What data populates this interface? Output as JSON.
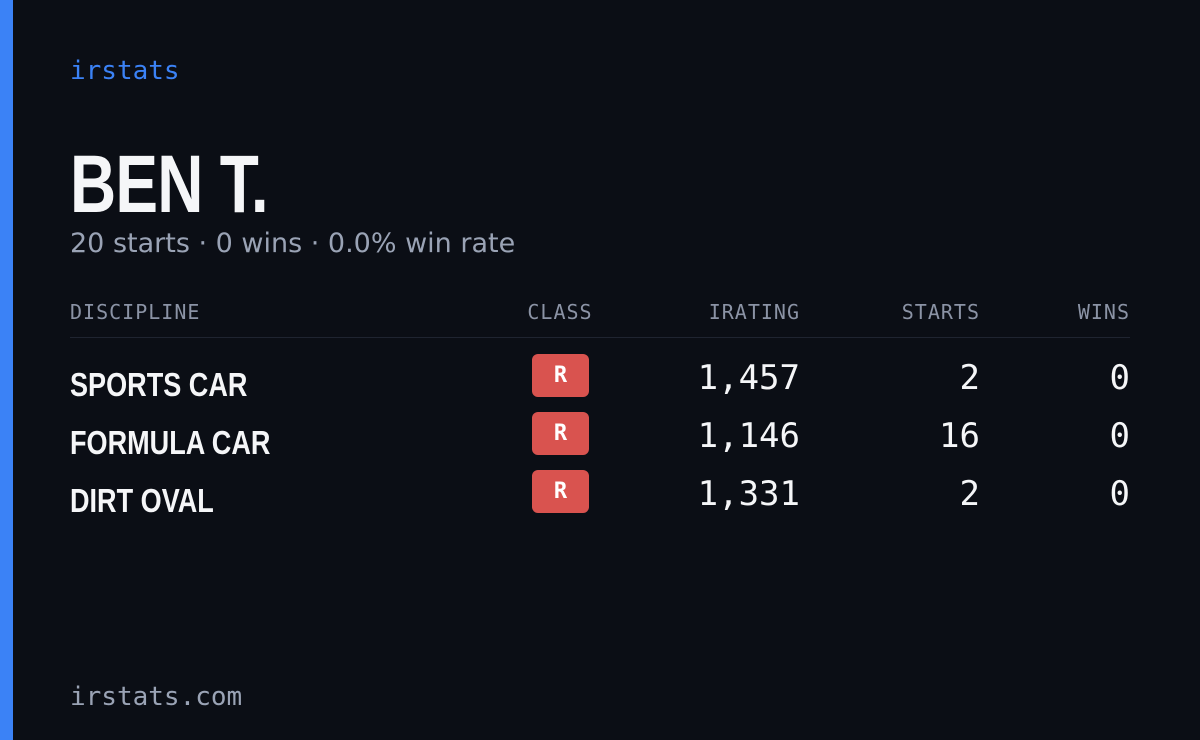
{
  "header": {
    "brand": "irstats",
    "name": "BEN T.",
    "subtitle": "20 starts · 0 wins · 0.0% win rate"
  },
  "table": {
    "columns": [
      "DISCIPLINE",
      "CLASS",
      "IRATING",
      "STARTS",
      "WINS"
    ],
    "rows": [
      [
        "SPORTS CAR",
        "R",
        "1,457",
        2,
        0
      ],
      [
        "FORMULA CAR",
        "R",
        "1,146",
        16,
        0
      ],
      [
        "DIRT OVAL",
        "R",
        "1,331",
        2,
        0
      ]
    ]
  },
  "footer": {
    "url": "irstats.com"
  }
}
